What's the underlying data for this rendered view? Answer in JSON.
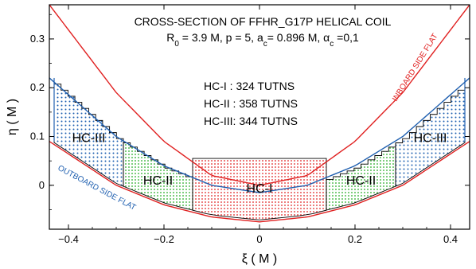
{
  "chart_data": {
    "type": "area",
    "title": "CROSS-SECTION OF FFHR_G17P HELICAL COIL",
    "params": {
      "r0": "R",
      "r0_sub": "0",
      "r0_val": " = 3.9 M,  p = 5, a",
      "ac_sub": "c",
      "ac_val": "= 0.896 M,   ",
      "alpha": "α",
      "alpha_sub": "c",
      "alpha_val": " =0,1"
    },
    "xlabel": "ξ ( M )",
    "ylabel": "η ( M )",
    "xlim": [
      -0.44,
      0.44
    ],
    "ylim": [
      -0.09,
      0.37
    ],
    "xticks": [
      {
        "v": -0.4,
        "label": "−0.4"
      },
      {
        "v": -0.2,
        "label": "−0.2"
      },
      {
        "v": 0,
        "label": "0"
      },
      {
        "v": 0.2,
        "label": "0.2"
      },
      {
        "v": 0.4,
        "label": "0.4"
      }
    ],
    "yticks": [
      {
        "v": 0,
        "label": "0"
      },
      {
        "v": 0.1,
        "label": "0.1"
      },
      {
        "v": 0.2,
        "label": "0.2"
      },
      {
        "v": 0.3,
        "label": "0.3"
      }
    ],
    "turns": [
      "HC-I  : 324 TUTNS",
      "HC-II : 358 TUTNS",
      "HC-III: 344 TUTNS"
    ],
    "curves": {
      "inboard_flat": {
        "label": "INBOARD SIDE FLAT",
        "color": "#e02020",
        "x": [
          -0.44,
          -0.3,
          -0.2,
          -0.1,
          0,
          0.1,
          0.2,
          0.3,
          0.44
        ],
        "y": [
          0.37,
          0.19,
          0.09,
          0.02,
          0.0,
          0.02,
          0.09,
          0.19,
          0.37
        ]
      },
      "outboard_flat": {
        "label": "OUTBOARD SIDE FLAT",
        "color": "#2060b0",
        "x": [
          -0.44,
          -0.3,
          -0.2,
          -0.1,
          0,
          0.1,
          0.2,
          0.3,
          0.44
        ],
        "y": [
          0.22,
          0.1,
          0.04,
          0.0,
          -0.015,
          0.0,
          0.04,
          0.1,
          0.22
        ]
      },
      "inner_red": {
        "color": "#e02020",
        "x": [
          -0.44,
          -0.3,
          -0.2,
          -0.1,
          0,
          0.1,
          0.2,
          0.3,
          0.44
        ],
        "y": [
          0.09,
          0.0,
          -0.04,
          -0.065,
          -0.075,
          -0.065,
          -0.04,
          0.0,
          0.09
        ]
      }
    },
    "regions": [
      {
        "label": "HC-III",
        "color": "#2060b0",
        "xmin": -0.43,
        "xmax": -0.285,
        "side": "left"
      },
      {
        "label": "HC-II",
        "color": "#22aa22",
        "xmin": -0.285,
        "xmax": -0.14,
        "side": "left"
      },
      {
        "label": "HC-I",
        "color": "#e02020",
        "xmin": -0.14,
        "xmax": 0.14,
        "side": "center"
      },
      {
        "label": "HC-II",
        "color": "#22aa22",
        "xmin": 0.14,
        "xmax": 0.285,
        "side": "right"
      },
      {
        "label": "HC-III",
        "color": "#2060b0",
        "xmin": 0.285,
        "xmax": 0.43,
        "side": "right"
      }
    ]
  }
}
